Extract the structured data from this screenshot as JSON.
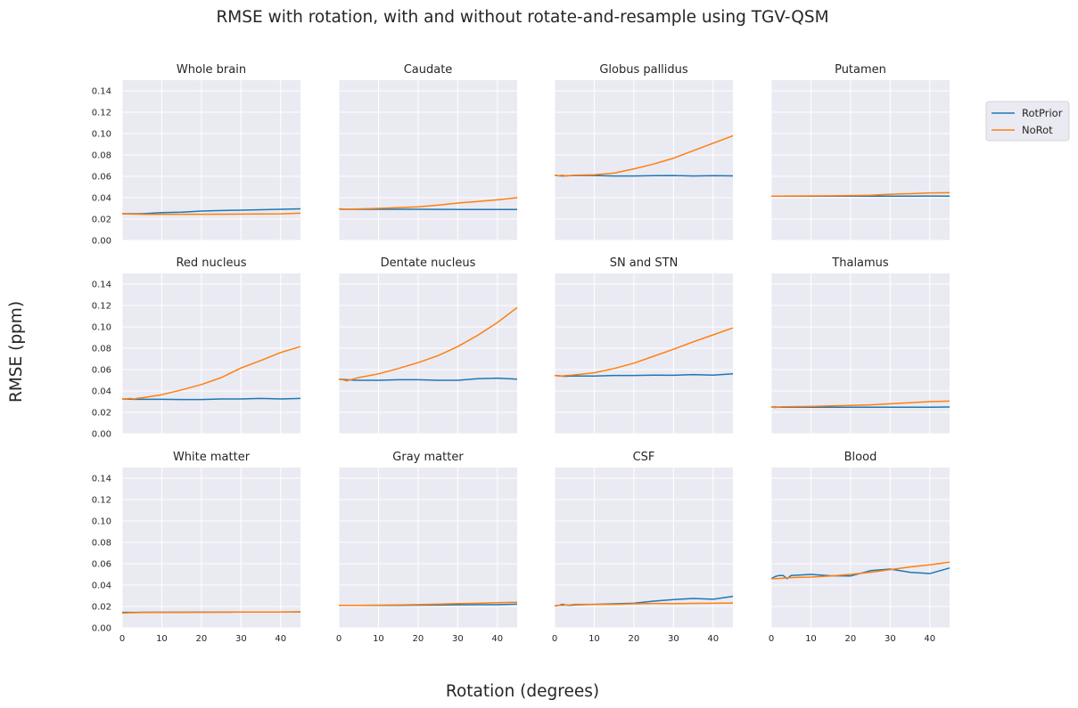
{
  "figure": {
    "suptitle": "RMSE with rotation, with and without rotate-and-resample using TGV-QSM",
    "xlabel": "Rotation (degrees)",
    "ylabel": "RMSE (ppm)"
  },
  "legend": {
    "placement": "right",
    "entries": [
      {
        "name": "RotPrior",
        "color": "#1f77b4"
      },
      {
        "name": "NoRot",
        "color": "#ff7f0e"
      }
    ]
  },
  "colors": {
    "panel_bg": "#eaeaf2",
    "grid": "#ffffff",
    "rotprior": "#1f77b4",
    "norot": "#ff7f0e"
  },
  "chart_data": {
    "type": "line",
    "layout": "3x4 grid, shared axes",
    "xlim": [
      0,
      45
    ],
    "ylim": [
      0,
      0.15
    ],
    "xticks": [
      0,
      10,
      20,
      30,
      40
    ],
    "yticks": [
      0.0,
      0.02,
      0.04,
      0.06,
      0.08,
      0.1,
      0.12,
      0.14
    ],
    "grid": true,
    "x": [
      0,
      1,
      2,
      3,
      4,
      5,
      10,
      15,
      20,
      25,
      30,
      35,
      40,
      45
    ],
    "panels": [
      {
        "title": "Whole brain",
        "series": [
          {
            "name": "RotPrior",
            "values": [
              0.025,
              0.025,
              0.025,
              0.025,
              0.025,
              0.025,
              0.026,
              0.0265,
              0.0275,
              0.028,
              0.0283,
              0.0288,
              0.0292,
              0.0296
            ]
          },
          {
            "name": "NoRot",
            "values": [
              0.025,
              0.025,
              0.0248,
              0.0247,
              0.0246,
              0.0245,
              0.0245,
              0.0245,
              0.0245,
              0.0246,
              0.0247,
              0.0248,
              0.0249,
              0.0255
            ]
          }
        ]
      },
      {
        "title": "Caudate",
        "series": [
          {
            "name": "RotPrior",
            "values": [
              0.0295,
              0.0293,
              0.0292,
              0.0292,
              0.0292,
              0.0292,
              0.0292,
              0.0292,
              0.0292,
              0.0291,
              0.029,
              0.029,
              0.029,
              0.029
            ]
          },
          {
            "name": "NoRot",
            "values": [
              0.0295,
              0.029,
              0.0292,
              0.0293,
              0.0294,
              0.0295,
              0.03,
              0.0307,
              0.0315,
              0.033,
              0.035,
              0.0365,
              0.038,
              0.04
            ]
          }
        ]
      },
      {
        "title": "Globus pallidus",
        "series": [
          {
            "name": "RotPrior",
            "values": [
              0.061,
              0.0605,
              0.0603,
              0.0605,
              0.0606,
              0.0607,
              0.0607,
              0.0603,
              0.0603,
              0.0606,
              0.0607,
              0.0603,
              0.0606,
              0.0604
            ]
          },
          {
            "name": "NoRot",
            "values": [
              0.061,
              0.0605,
              0.061,
              0.0603,
              0.0607,
              0.061,
              0.0615,
              0.063,
              0.067,
              0.0715,
              0.077,
              0.084,
              0.091,
              0.098
            ]
          }
        ]
      },
      {
        "title": "Putamen",
        "series": [
          {
            "name": "RotPrior",
            "values": [
              0.0415,
              0.0415,
              0.0415,
              0.0415,
              0.0415,
              0.0415,
              0.0415,
              0.0415,
              0.0415,
              0.0415,
              0.0415,
              0.0415,
              0.0416,
              0.0415
            ]
          },
          {
            "name": "NoRot",
            "values": [
              0.0415,
              0.0415,
              0.0415,
              0.0415,
              0.0416,
              0.0416,
              0.0417,
              0.0418,
              0.042,
              0.0423,
              0.0432,
              0.0438,
              0.0445,
              0.0447
            ]
          }
        ]
      },
      {
        "title": "Red nucleus",
        "series": [
          {
            "name": "RotPrior",
            "values": [
              0.0325,
              0.0324,
              0.0323,
              0.0322,
              0.0322,
              0.0322,
              0.0322,
              0.032,
              0.032,
              0.0325,
              0.0325,
              0.033,
              0.0325,
              0.033
            ]
          },
          {
            "name": "NoRot",
            "values": [
              0.0325,
              0.0325,
              0.033,
              0.0325,
              0.0332,
              0.0335,
              0.0365,
              0.041,
              0.046,
              0.0525,
              0.0615,
              0.0685,
              0.076,
              0.0815
            ]
          }
        ]
      },
      {
        "title": "Dentate nucleus",
        "series": [
          {
            "name": "RotPrior",
            "values": [
              0.051,
              0.0508,
              0.0505,
              0.0503,
              0.05,
              0.05,
              0.05,
              0.0505,
              0.0505,
              0.05,
              0.05,
              0.0515,
              0.052,
              0.051
            ]
          },
          {
            "name": "NoRot",
            "values": [
              0.051,
              0.0505,
              0.0495,
              0.0505,
              0.0515,
              0.0525,
              0.056,
              0.061,
              0.0665,
              0.073,
              0.0815,
              0.092,
              0.104,
              0.118
            ]
          }
        ]
      },
      {
        "title": "SN and STN",
        "series": [
          {
            "name": "RotPrior",
            "values": [
              0.0545,
              0.0542,
              0.0538,
              0.0538,
              0.054,
              0.054,
              0.054,
              0.0545,
              0.0545,
              0.0548,
              0.0547,
              0.0553,
              0.0548,
              0.056
            ]
          },
          {
            "name": "NoRot",
            "values": [
              0.0545,
              0.0543,
              0.054,
              0.0545,
              0.0547,
              0.055,
              0.057,
              0.061,
              0.066,
              0.0725,
              0.079,
              0.086,
              0.0925,
              0.099
            ]
          }
        ]
      },
      {
        "title": "Thalamus",
        "series": [
          {
            "name": "RotPrior",
            "values": [
              0.025,
              0.025,
              0.0248,
              0.0248,
              0.0248,
              0.0248,
              0.0248,
              0.0248,
              0.0248,
              0.0248,
              0.0248,
              0.0248,
              0.0248,
              0.025
            ]
          },
          {
            "name": "NoRot",
            "values": [
              0.025,
              0.0245,
              0.025,
              0.0252,
              0.0252,
              0.0253,
              0.0255,
              0.026,
              0.0265,
              0.027,
              0.028,
              0.029,
              0.03,
              0.0305
            ]
          }
        ]
      },
      {
        "title": "White matter",
        "series": [
          {
            "name": "RotPrior",
            "values": [
              0.0145,
              0.0145,
              0.0145,
              0.0145,
              0.0145,
              0.0146,
              0.0146,
              0.0146,
              0.0147,
              0.0147,
              0.0148,
              0.0148,
              0.0148,
              0.015
            ]
          },
          {
            "name": "NoRot",
            "values": [
              0.014,
              0.014,
              0.0142,
              0.0142,
              0.0143,
              0.0144,
              0.0145,
              0.0146,
              0.0146,
              0.0147,
              0.0148,
              0.0148,
              0.0148,
              0.0148
            ]
          }
        ]
      },
      {
        "title": "Gray matter",
        "series": [
          {
            "name": "RotPrior",
            "values": [
              0.021,
              0.021,
              0.021,
              0.021,
              0.021,
              0.021,
              0.021,
              0.021,
              0.0212,
              0.0214,
              0.0216,
              0.0217,
              0.0217,
              0.0222
            ]
          },
          {
            "name": "NoRot",
            "values": [
              0.021,
              0.021,
              0.021,
              0.021,
              0.021,
              0.021,
              0.0212,
              0.0215,
              0.0218,
              0.0222,
              0.0227,
              0.023,
              0.0235,
              0.024
            ]
          }
        ]
      },
      {
        "title": "CSF",
        "series": [
          {
            "name": "RotPrior",
            "values": [
              0.0205,
              0.021,
              0.022,
              0.0212,
              0.021,
              0.0215,
              0.022,
              0.0225,
              0.023,
              0.025,
              0.0265,
              0.0275,
              0.0268,
              0.0295
            ]
          },
          {
            "name": "NoRot",
            "values": [
              0.0205,
              0.021,
              0.021,
              0.0215,
              0.0215,
              0.022,
              0.022,
              0.022,
              0.0225,
              0.0228,
              0.0227,
              0.0229,
              0.023,
              0.0232
            ]
          }
        ]
      },
      {
        "title": "Blood",
        "series": [
          {
            "name": "RotPrior",
            "values": [
              0.046,
              0.048,
              0.049,
              0.049,
              0.046,
              0.049,
              0.05,
              0.0488,
              0.0485,
              0.0535,
              0.055,
              0.052,
              0.0508,
              0.056
            ]
          },
          {
            "name": "NoRot",
            "values": [
              0.046,
              0.046,
              0.0462,
              0.0465,
              0.0468,
              0.047,
              0.0475,
              0.0485,
              0.05,
              0.052,
              0.0545,
              0.057,
              0.059,
              0.0615
            ]
          }
        ]
      }
    ]
  }
}
